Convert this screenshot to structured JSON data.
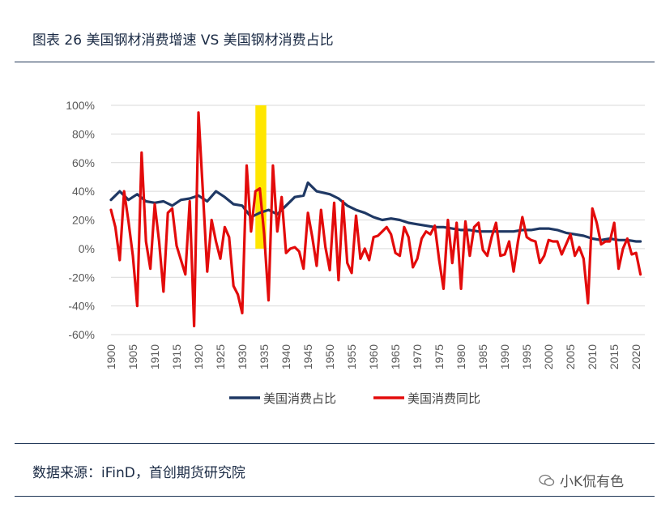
{
  "header": {
    "title": "图表 26 美国钢材消费增速 VS 美国钢材消费占比"
  },
  "footer": {
    "source": "数据来源：iFinD，首创期货研究院",
    "watermark": "小K侃有色"
  },
  "chart_data": {
    "type": "line",
    "xlabel": "",
    "ylabel": "",
    "ylim": [
      -0.6,
      1.0
    ],
    "y_ticks": [
      "100%",
      "80%",
      "60%",
      "40%",
      "20%",
      "0%",
      "-20%",
      "-40%",
      "-60%"
    ],
    "x_ticks": [
      "1900",
      "1905",
      "1910",
      "1915",
      "1920",
      "1925",
      "1930",
      "1935",
      "1940",
      "1945",
      "1950",
      "1955",
      "1960",
      "1965",
      "1970",
      "1975",
      "1980",
      "1985",
      "1990",
      "1995",
      "2000",
      "2005",
      "2010",
      "2015",
      "2020"
    ],
    "grid": true,
    "legend_position": "bottom",
    "highlight_band": {
      "x_start": 1933,
      "x_end": 1935.5,
      "color": "#FFE600"
    },
    "series": [
      {
        "name": "美国消费占比",
        "color": "#1F3864",
        "x": [
          1900,
          1902,
          1904,
          1906,
          1908,
          1910,
          1912,
          1914,
          1916,
          1918,
          1920,
          1922,
          1924,
          1926,
          1928,
          1930,
          1932,
          1934,
          1936,
          1938,
          1940,
          1942,
          1944,
          1945,
          1947,
          1950,
          1952,
          1954,
          1956,
          1958,
          1960,
          1962,
          1964,
          1966,
          1968,
          1970,
          1972,
          1974,
          1976,
          1978,
          1980,
          1982,
          1984,
          1986,
          1988,
          1990,
          1992,
          1994,
          1996,
          1998,
          2000,
          2002,
          2004,
          2006,
          2008,
          2010,
          2012,
          2014,
          2016,
          2018,
          2020,
          2021
        ],
        "values": [
          0.34,
          0.4,
          0.34,
          0.38,
          0.33,
          0.32,
          0.33,
          0.3,
          0.34,
          0.35,
          0.37,
          0.33,
          0.4,
          0.36,
          0.31,
          0.3,
          0.22,
          0.25,
          0.27,
          0.24,
          0.3,
          0.36,
          0.37,
          0.46,
          0.4,
          0.38,
          0.35,
          0.3,
          0.27,
          0.25,
          0.22,
          0.2,
          0.21,
          0.2,
          0.18,
          0.17,
          0.16,
          0.15,
          0.15,
          0.14,
          0.13,
          0.13,
          0.12,
          0.12,
          0.12,
          0.12,
          0.12,
          0.13,
          0.13,
          0.14,
          0.14,
          0.13,
          0.11,
          0.1,
          0.09,
          0.07,
          0.06,
          0.07,
          0.06,
          0.06,
          0.05,
          0.05
        ]
      },
      {
        "name": "美国消费同比",
        "color": "#E30B0B",
        "x": [
          1900,
          1901,
          1902,
          1903,
          1904,
          1905,
          1906,
          1907,
          1908,
          1909,
          1910,
          1911,
          1912,
          1913,
          1914,
          1915,
          1916,
          1917,
          1918,
          1919,
          1920,
          1921,
          1922,
          1923,
          1924,
          1925,
          1926,
          1927,
          1928,
          1929,
          1930,
          1931,
          1932,
          1933,
          1934,
          1935,
          1936,
          1937,
          1938,
          1939,
          1940,
          1941,
          1942,
          1943,
          1944,
          1945,
          1946,
          1947,
          1948,
          1949,
          1950,
          1951,
          1952,
          1953,
          1954,
          1955,
          1956,
          1957,
          1958,
          1959,
          1960,
          1961,
          1962,
          1963,
          1964,
          1965,
          1966,
          1967,
          1968,
          1969,
          1970,
          1971,
          1972,
          1973,
          1974,
          1975,
          1976,
          1977,
          1978,
          1979,
          1980,
          1981,
          1982,
          1983,
          1984,
          1985,
          1986,
          1987,
          1988,
          1989,
          1990,
          1991,
          1992,
          1993,
          1994,
          1995,
          1996,
          1997,
          1998,
          1999,
          2000,
          2001,
          2002,
          2003,
          2004,
          2005,
          2006,
          2007,
          2008,
          2009,
          2010,
          2011,
          2012,
          2013,
          2014,
          2015,
          2016,
          2017,
          2018,
          2019,
          2020,
          2021
        ],
        "values": [
          0.27,
          0.15,
          -0.08,
          0.4,
          0.19,
          -0.05,
          -0.4,
          0.67,
          0.05,
          -0.14,
          0.31,
          0.05,
          -0.3,
          0.25,
          0.28,
          0.02,
          -0.08,
          -0.18,
          0.33,
          -0.54,
          0.95,
          0.4,
          -0.16,
          0.2,
          0.05,
          -0.07,
          0.15,
          0.08,
          -0.26,
          -0.32,
          -0.45,
          0.58,
          0.12,
          0.4,
          0.42,
          0.1,
          -0.36,
          0.58,
          0.12,
          0.36,
          -0.03,
          0.0,
          0.01,
          -0.02,
          -0.14,
          0.25,
          0.08,
          -0.12,
          0.27,
          0.01,
          -0.15,
          0.32,
          -0.22,
          0.33,
          -0.1,
          -0.17,
          0.23,
          -0.07,
          0.0,
          -0.08,
          0.08,
          0.09,
          0.12,
          0.15,
          0.1,
          -0.03,
          -0.05,
          0.15,
          0.08,
          -0.13,
          -0.07,
          0.07,
          0.12,
          0.1,
          0.16,
          -0.08,
          -0.28,
          0.2,
          -0.1,
          0.18,
          -0.28,
          0.19,
          -0.05,
          0.15,
          0.18,
          -0.01,
          -0.05,
          0.08,
          0.18,
          -0.05,
          -0.04,
          0.05,
          -0.16,
          0.05,
          0.22,
          0.08,
          0.06,
          0.05,
          -0.1,
          -0.05,
          0.06,
          0.05,
          0.05,
          -0.04,
          0.03,
          0.1,
          -0.05,
          0.01,
          -0.07,
          -0.38,
          0.28,
          0.18,
          0.03,
          0.05,
          0.05,
          0.18,
          -0.14,
          0.0,
          0.07,
          -0.04,
          -0.03,
          -0.18
        ]
      }
    ]
  }
}
